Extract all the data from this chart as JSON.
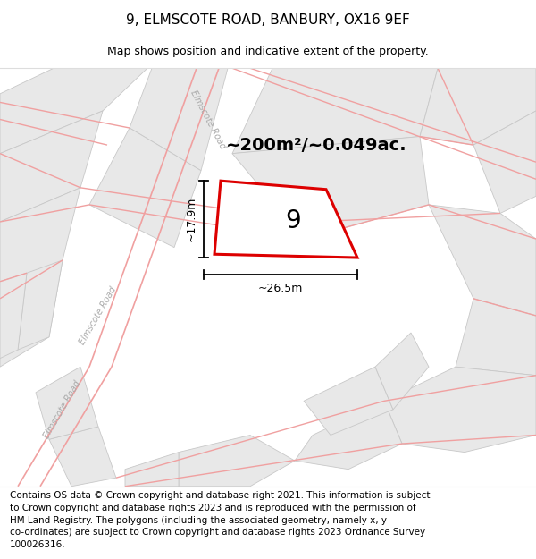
{
  "title": "9, ELMSCOTE ROAD, BANBURY, OX16 9EF",
  "subtitle": "Map shows position and indicative extent of the property.",
  "footer": "Contains OS data © Crown copyright and database right 2021. This information is subject\nto Crown copyright and database rights 2023 and is reproduced with the permission of\nHM Land Registry. The polygons (including the associated geometry, namely x, y\nco-ordinates) are subject to Crown copyright and database rights 2023 Ordnance Survey\n100026316.",
  "bg_color": "#ffffff",
  "map_bg": "#ffffff",
  "block_fill": "#e8e8e8",
  "block_edge": "#c8c8c8",
  "road_color": "#f0a0a0",
  "plot_edge": "#dd0000",
  "area_text": "~200m²/~0.049ac.",
  "plot_label": "9",
  "dim_width": "~26.5m",
  "dim_height": "~17.9m",
  "road_label_left_upper": "Elmscote Road",
  "road_label_left_lower": "Elmscote Road",
  "road_label_top": "Elmscote Road",
  "title_fontsize": 11,
  "subtitle_fontsize": 9,
  "footer_fontsize": 7.5,
  "area_fontsize": 14
}
